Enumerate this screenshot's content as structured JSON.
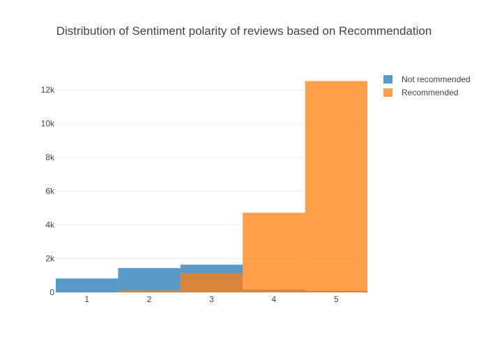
{
  "chart_data": {
    "type": "bar",
    "title": "Distribution of Sentiment polarity of reviews based on Recommendation",
    "xlabel": "",
    "ylabel": "",
    "categories": [
      "1",
      "2",
      "3",
      "4",
      "5"
    ],
    "series": [
      {
        "name": "Not recommended",
        "values": [
          820,
          1440,
          1640,
          170,
          80
        ],
        "color": "#1f77b4"
      },
      {
        "name": "Recommended",
        "values": [
          10,
          110,
          1140,
          4720,
          12520
        ],
        "color": "#ff7f0e"
      }
    ],
    "barmode": "overlay",
    "opacity": 0.75,
    "ylim": [
      0,
      13200
    ],
    "yticks": [
      0,
      2000,
      4000,
      6000,
      8000,
      10000,
      12000
    ],
    "ytick_labels": [
      "0",
      "2k",
      "4k",
      "6k",
      "8k",
      "10k",
      "12k"
    ],
    "grid": true,
    "legend_position": "top-right"
  }
}
